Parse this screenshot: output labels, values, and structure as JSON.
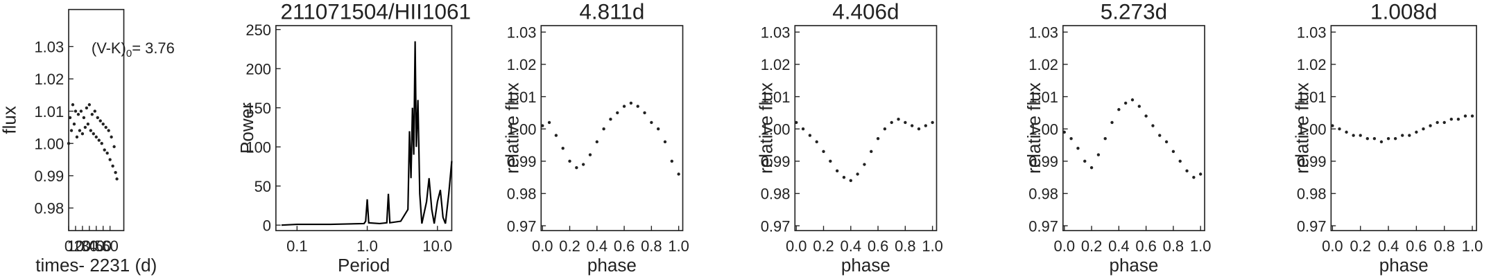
{
  "chart_data": [
    {
      "type": "scatter",
      "y_label": "flux",
      "x_label": "times- 2231 (d)",
      "annotation": "(V-K)",
      "annotation_sub": "0",
      "annotation_value": "= 3.76",
      "x": [
        0,
        2,
        4,
        6,
        8,
        10,
        12,
        14,
        16,
        18,
        20,
        22,
        24,
        26,
        28,
        30,
        32,
        34,
        36,
        38,
        40,
        42,
        44,
        46,
        48,
        50,
        52,
        54,
        56,
        58,
        60,
        62,
        64,
        66,
        68,
        70
      ],
      "values": [
        1.0,
        1.008,
        1.004,
        1.012,
        1.006,
        1.01,
        1.002,
        1.009,
        1.004,
        1.01,
        1.003,
        1.008,
        1.005,
        1.011,
        1.006,
        1.012,
        1.004,
        1.009,
        1.003,
        1.01,
        1.002,
        1.008,
        1.001,
        1.007,
        1.0,
        1.006,
        0.998,
        1.005,
        0.997,
        1.004,
        0.995,
        1.002,
        0.993,
        0.999,
        0.991,
        0.989
      ],
      "color": "#222222",
      "xlim": [
        0,
        80
      ],
      "xticks": [
        0,
        10,
        20,
        30,
        40,
        50,
        60
      ],
      "ylim": [
        0.973,
        1.0415
      ],
      "yticks": [
        0.98,
        0.99,
        {
          "value": 1,
          "label": "1.00"
        },
        1.01,
        1.02,
        1.03
      ]
    },
    {
      "type": "line",
      "title": "211071504/HII1061",
      "y_label": "Power",
      "x_label": "Period",
      "xlog": true,
      "x": [
        0.06,
        0.1,
        0.3,
        0.9,
        0.95,
        1.0,
        1.05,
        1.5,
        1.9,
        2.0,
        2.1,
        3.0,
        3.8,
        4.0,
        4.2,
        4.406,
        4.6,
        4.811,
        5.0,
        5.273,
        5.6,
        6.0,
        7.0,
        7.6,
        8.3,
        9.0,
        10.0,
        11.0,
        12.0,
        13.0,
        14.5,
        16.0
      ],
      "values": [
        0,
        1,
        1,
        2,
        5,
        33,
        3,
        2,
        3,
        40,
        3,
        5,
        20,
        120,
        60,
        150,
        90,
        235,
        100,
        160,
        40,
        2,
        30,
        60,
        20,
        2,
        30,
        45,
        10,
        2,
        40,
        82
      ],
      "color": "#000000",
      "xlim": [
        0.05,
        16
      ],
      "xticks": [
        0.1,
        {
          "value": 1,
          "label": "1.0"
        },
        {
          "value": 10,
          "label": "10.0"
        }
      ],
      "ylim": [
        -7,
        255
      ],
      "yticks": [
        0,
        50,
        100,
        150,
        200,
        250
      ]
    },
    {
      "type": "scatter",
      "title": "4.811d",
      "y_label": "relative flux",
      "x_label": "phase",
      "x": [
        0,
        0.05,
        0.1,
        0.15,
        0.2,
        0.25,
        0.3,
        0.35,
        0.4,
        0.45,
        0.5,
        0.55,
        0.6,
        0.65,
        0.7,
        0.75,
        0.8,
        0.85,
        0.9,
        0.95,
        1.0
      ],
      "values": [
        1.001,
        1.002,
        0.998,
        0.994,
        0.99,
        0.988,
        0.989,
        0.992,
        0.996,
        1.0,
        1.003,
        1.005,
        1.007,
        1.008,
        1.007,
        1.005,
        1.002,
        1.0,
        0.996,
        0.99,
        0.986
      ],
      "color": "#222222",
      "xlim": [
        -0.01,
        1.03
      ],
      "xticks": [
        {
          "value": 0,
          "label": "0.0"
        },
        0.2,
        0.4,
        0.6,
        0.8,
        {
          "value": 1,
          "label": "1.0"
        }
      ],
      "ylim": [
        0.9685,
        1.032
      ],
      "yticks": [
        0.97,
        0.98,
        0.99,
        {
          "value": 1,
          "label": "1.00"
        },
        1.01,
        1.02,
        1.03
      ]
    },
    {
      "type": "scatter",
      "title": "4.406d",
      "y_label": "relative flux",
      "x_label": "phase",
      "x": [
        0,
        0.05,
        0.1,
        0.15,
        0.2,
        0.25,
        0.3,
        0.35,
        0.4,
        0.45,
        0.5,
        0.55,
        0.6,
        0.65,
        0.7,
        0.75,
        0.8,
        0.85,
        0.9,
        0.95,
        1.0
      ],
      "values": [
        1.002,
        1.0,
        0.998,
        0.996,
        0.993,
        0.99,
        0.987,
        0.985,
        0.984,
        0.986,
        0.989,
        0.993,
        0.997,
        1.0,
        1.002,
        1.003,
        1.002,
        1.001,
        1.0,
        1.001,
        1.002
      ],
      "color": "#222222",
      "xlim": [
        -0.01,
        1.03
      ],
      "xticks": [
        {
          "value": 0,
          "label": "0.0"
        },
        0.2,
        0.4,
        0.6,
        0.8,
        {
          "value": 1,
          "label": "1.0"
        }
      ],
      "ylim": [
        0.9685,
        1.032
      ],
      "yticks": [
        0.97,
        0.98,
        0.99,
        {
          "value": 1,
          "label": "1.00"
        },
        1.01,
        1.02,
        1.03
      ]
    },
    {
      "type": "scatter",
      "title": "5.273d",
      "y_label": "relative flux",
      "x_label": "phase",
      "x": [
        0,
        0.05,
        0.1,
        0.15,
        0.2,
        0.25,
        0.3,
        0.35,
        0.4,
        0.45,
        0.5,
        0.55,
        0.6,
        0.65,
        0.7,
        0.75,
        0.8,
        0.85,
        0.9,
        0.95,
        1.0
      ],
      "values": [
        0.999,
        0.997,
        0.994,
        0.99,
        0.988,
        0.992,
        0.997,
        1.002,
        1.006,
        1.008,
        1.009,
        1.007,
        1.004,
        1.001,
        0.998,
        0.996,
        0.993,
        0.99,
        0.987,
        0.985,
        0.986
      ],
      "color": "#222222",
      "xlim": [
        -0.01,
        1.03
      ],
      "xticks": [
        {
          "value": 0,
          "label": "0.0"
        },
        0.2,
        0.4,
        0.6,
        0.8,
        {
          "value": 1,
          "label": "1.0"
        }
      ],
      "ylim": [
        0.9685,
        1.032
      ],
      "yticks": [
        0.97,
        0.98,
        0.99,
        {
          "value": 1,
          "label": "1.00"
        },
        1.01,
        1.02,
        1.03
      ]
    },
    {
      "type": "scatter",
      "title": "1.008d",
      "y_label": "relative flux",
      "x_label": "phase",
      "x": [
        0,
        0.05,
        0.1,
        0.15,
        0.2,
        0.25,
        0.3,
        0.35,
        0.4,
        0.45,
        0.5,
        0.55,
        0.6,
        0.65,
        0.7,
        0.75,
        0.8,
        0.85,
        0.9,
        0.95,
        1.0
      ],
      "values": [
        1.001,
        1.0,
        0.999,
        0.998,
        0.998,
        0.997,
        0.997,
        0.996,
        0.997,
        0.997,
        0.998,
        0.998,
        0.999,
        1.0,
        1.001,
        1.002,
        1.002,
        1.003,
        1.003,
        1.004,
        1.004
      ],
      "color": "#222222",
      "xlim": [
        -0.01,
        1.03
      ],
      "xticks": [
        {
          "value": 0,
          "label": "0.0"
        },
        0.2,
        0.4,
        0.6,
        0.8,
        {
          "value": 1,
          "label": "1.0"
        }
      ],
      "ylim": [
        0.9685,
        1.032
      ],
      "yticks": [
        0.97,
        0.98,
        0.99,
        {
          "value": 1,
          "label": "1.00"
        },
        1.01,
        1.02,
        1.03
      ]
    }
  ]
}
